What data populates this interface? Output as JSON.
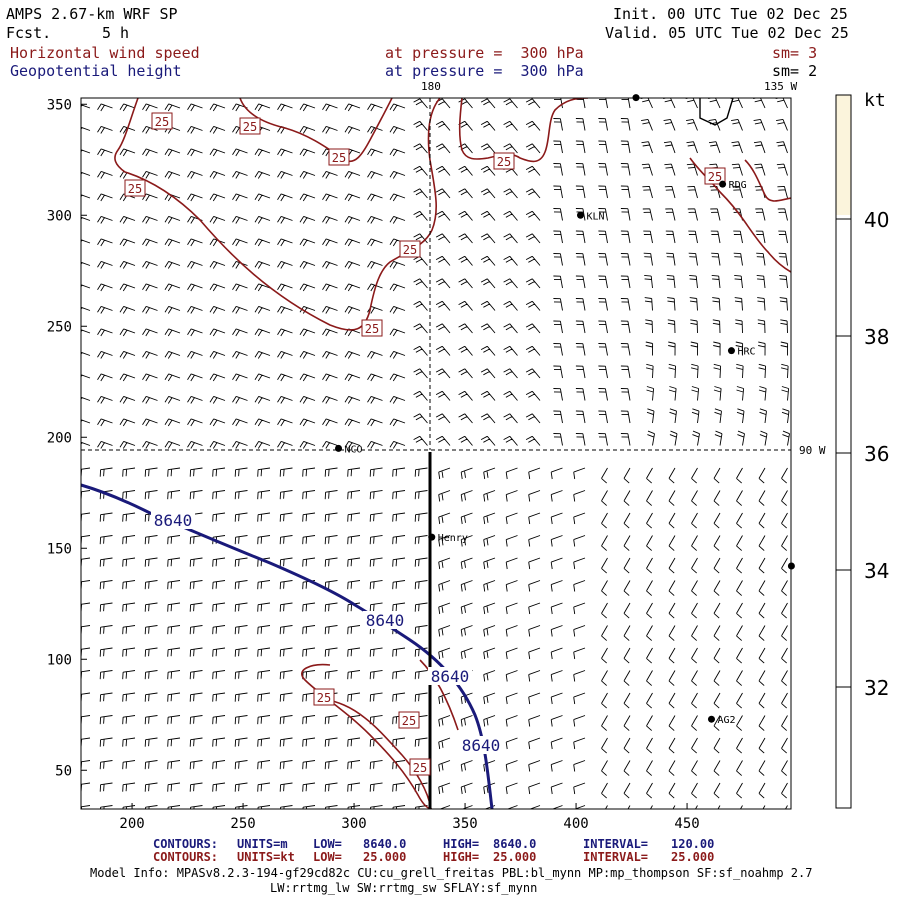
{
  "header": {
    "title": "AMPS 2.67-km WRF SP",
    "fcst_label": "Fcst.",
    "fcst_value": "5 h",
    "init": "Init. 00 UTC Tue 02 Dec 25",
    "valid": "Valid. 05 UTC Tue 02 Dec 25",
    "field1": "Horizontal wind speed",
    "field2": "Geopotential height",
    "pressure1": "at pressure =  300 hPa",
    "pressure2": "at pressure =  300 hPa",
    "sm1": "sm= 3",
    "sm2": "sm= 2"
  },
  "map": {
    "x_ticks": [
      "200",
      "250",
      "300",
      "350",
      "400",
      "450"
    ],
    "y_ticks": [
      "50",
      "100",
      "150",
      "200",
      "250",
      "300",
      "350"
    ],
    "meridian_labels": [
      "180",
      "135 W",
      "90 W"
    ],
    "stations": [
      {
        "name": "NCO",
        "x": 293,
        "y": 195
      },
      {
        "name": "Henry",
        "x": 335,
        "y": 155
      },
      {
        "name": "KLN",
        "x": 402,
        "y": 300
      },
      {
        "name": "RDG",
        "x": 466,
        "y": 314
      },
      {
        "name": "HRC",
        "x": 470,
        "y": 239
      },
      {
        "name": "AG2",
        "x": 461,
        "y": 73
      },
      {
        "name": "",
        "x": 427,
        "y": 353
      },
      {
        "name": "",
        "x": 497,
        "y": 142
      }
    ],
    "height_contour_label": "8640",
    "wind_contour_label": "25",
    "colors": {
      "height": "#1a1a7a",
      "wind": "#8b1a1a",
      "fill": "#fbf4dc"
    }
  },
  "colorbar": {
    "unit": "kt",
    "ticks": [
      "32",
      "34",
      "36",
      "38",
      "40"
    ]
  },
  "footer": {
    "line1": {
      "label": "CONTOURS:",
      "units": "UNITS=m",
      "low": "LOW=",
      "low_val": "8640.0",
      "high": "HIGH=",
      "high_val": "8640.0",
      "interval": "INTERVAL=",
      "interval_val": "120.00"
    },
    "line2": {
      "label": "CONTOURS:",
      "units": "UNITS=kt",
      "low": "LOW=",
      "low_val": "25.000",
      "high": "HIGH=",
      "high_val": "25.000",
      "interval": "INTERVAL=",
      "interval_val": "25.000"
    },
    "model_info": "Model Info: MPASv8.2.3-194-gf29cd82c CU:cu_grell_freitas PBL:bl_mynn MP:mp_thompson SF:sf_noahmp 2.7",
    "model_info2": "LW:rrtmg_lw SW:rrtmg_sw SFLAY:sf_mynn"
  }
}
